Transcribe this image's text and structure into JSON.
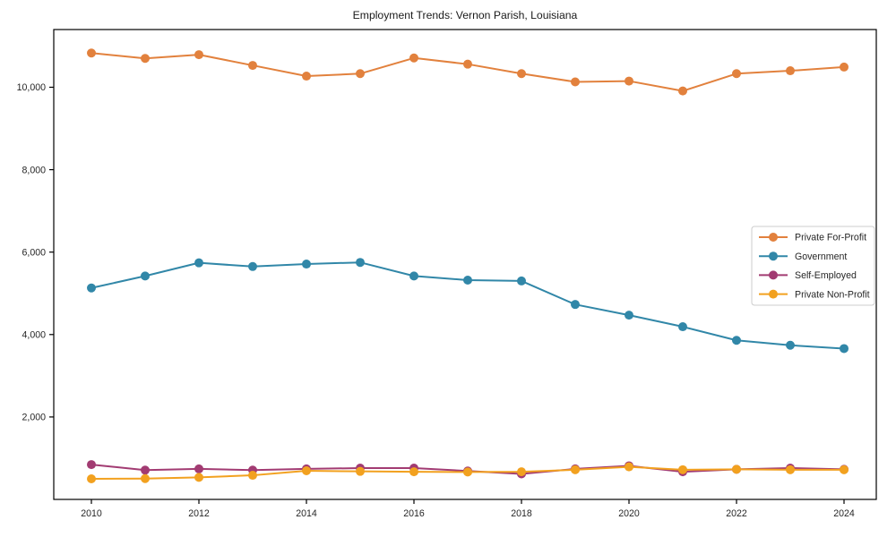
{
  "chart_data": {
    "type": "line",
    "title": "Employment Trends: Vernon Parish, Louisiana",
    "xlabel": "",
    "ylabel": "",
    "grid": false,
    "legend_position": "center right",
    "axis_color": "#000000",
    "background_color": "#ffffff",
    "legend": {
      "background": "#ffffff",
      "border_color": "#cccccc"
    },
    "x": [
      2010,
      2011,
      2012,
      2013,
      2014,
      2015,
      2016,
      2017,
      2018,
      2019,
      2020,
      2021,
      2022,
      2023,
      2024
    ],
    "x_ticks": [
      {
        "value": 2010,
        "label": "2010"
      },
      {
        "value": 2012,
        "label": "2012"
      },
      {
        "value": 2014,
        "label": "2014"
      },
      {
        "value": 2016,
        "label": "2016"
      },
      {
        "value": 2018,
        "label": "2018"
      },
      {
        "value": 2020,
        "label": "2020"
      },
      {
        "value": 2022,
        "label": "2022"
      },
      {
        "value": 2024,
        "label": "2024"
      }
    ],
    "y_ticks": [
      {
        "value": 2000,
        "label": "2,000"
      },
      {
        "value": 4000,
        "label": "4,000"
      },
      {
        "value": 6000,
        "label": "6,000"
      },
      {
        "value": 8000,
        "label": "8,000"
      },
      {
        "value": 10000,
        "label": "10,000"
      }
    ],
    "xlim": [
      2009.3,
      2024.6
    ],
    "ylim": [
      0,
      11400
    ],
    "series": [
      {
        "name": "Private For-Profit",
        "color": "#E2813D",
        "values": [
          10830,
          10700,
          10790,
          10530,
          10270,
          10330,
          10710,
          10560,
          10330,
          10130,
          10150,
          9910,
          10330,
          10400,
          10490
        ]
      },
      {
        "name": "Government",
        "color": "#3187A8",
        "values": [
          5130,
          5420,
          5740,
          5650,
          5710,
          5750,
          5420,
          5320,
          5300,
          4730,
          4470,
          4190,
          3860,
          3740,
          3660
        ]
      },
      {
        "name": "Self-Employed",
        "color": "#A23B72",
        "values": [
          845,
          710,
          740,
          710,
          740,
          760,
          760,
          690,
          620,
          740,
          815,
          670,
          730,
          760,
          730
        ]
      },
      {
        "name": "Private Non-Profit",
        "color": "#F2A11F",
        "values": [
          500,
          505,
          535,
          585,
          695,
          680,
          670,
          665,
          670,
          720,
          790,
          720,
          730,
          720,
          720
        ]
      }
    ]
  }
}
